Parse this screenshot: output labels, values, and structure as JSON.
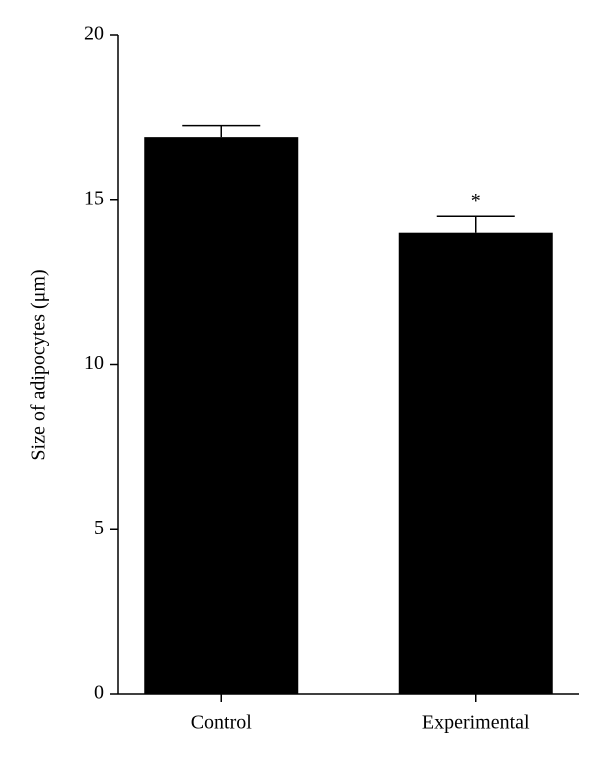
{
  "chart_data": {
    "type": "bar",
    "y_label": "Size of adipocytes (μm)",
    "categories": [
      "Control",
      "Experimental"
    ],
    "values": [
      16.9,
      14.0
    ],
    "errors": [
      0.35,
      0.5
    ],
    "color": "#000000",
    "ylim": [
      0,
      20
    ],
    "yticks": [
      0,
      5,
      10,
      15,
      20
    ],
    "annotations": [
      {
        "text": "*",
        "category": "Experimental"
      }
    ]
  }
}
